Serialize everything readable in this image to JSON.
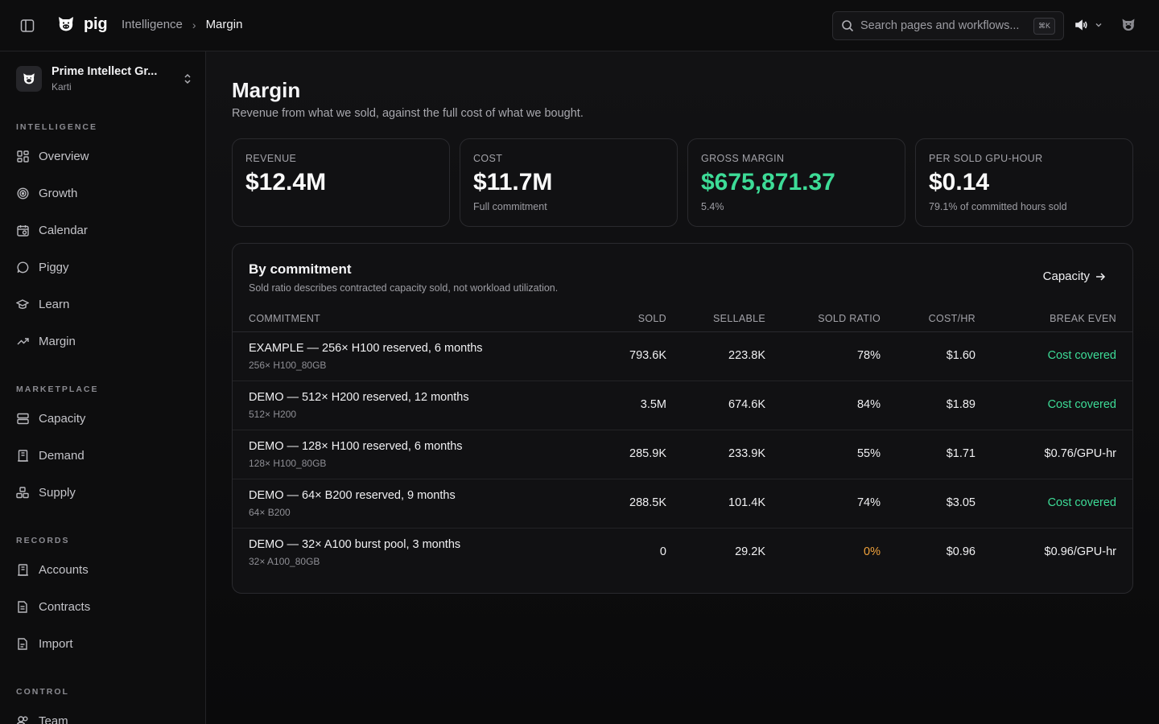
{
  "topbar": {
    "brand": "pig",
    "breadcrumb_parent": "Intelligence",
    "breadcrumb_current": "Margin",
    "search_placeholder": "Search pages and workflows...",
    "search_shortcut": "⌘K"
  },
  "sidebar": {
    "org_name": "Prime Intellect Gr...",
    "org_user": "Karti",
    "sections": {
      "intelligence": "INTELLIGENCE",
      "marketplace": "MARKETPLACE",
      "records": "RECORDS",
      "control": "CONTROL"
    },
    "items": {
      "overview": "Overview",
      "growth": "Growth",
      "calendar": "Calendar",
      "piggy": "Piggy",
      "learn": "Learn",
      "margin": "Margin",
      "capacity": "Capacity",
      "demand": "Demand",
      "supply": "Supply",
      "accounts": "Accounts",
      "contracts": "Contracts",
      "import": "Import",
      "team": "Team"
    }
  },
  "page": {
    "title": "Margin",
    "subtitle": "Revenue from what we sold, against the full cost of what we bought."
  },
  "cards": [
    {
      "label": "REVENUE",
      "value": "$12.4M",
      "note": ""
    },
    {
      "label": "COST",
      "value": "$11.7M",
      "note": "Full commitment"
    },
    {
      "label": "GROSS MARGIN",
      "value": "$675,871.37",
      "note": "5.4%"
    },
    {
      "label": "PER SOLD GPU-HOUR",
      "value": "$0.14",
      "note": "79.1% of committed hours sold"
    }
  ],
  "table": {
    "title": "By commitment",
    "subtitle": "Sold ratio describes contracted capacity sold, not workload utilization.",
    "link": "Capacity",
    "headers": {
      "commitment": "COMMITMENT",
      "sold": "SOLD",
      "sellable": "SELLABLE",
      "ratio": "SOLD RATIO",
      "cost": "COST/HR",
      "break_even": "BREAK EVEN"
    },
    "rows": [
      {
        "name": "EXAMPLE — 256× H100 reserved, 6 months",
        "sub": "256× H100_80GB",
        "sold": "793.6K",
        "sellable": "223.8K",
        "ratio": "78%",
        "cost": "$1.60",
        "break_even": "Cost covered"
      },
      {
        "name": "DEMO — 512× H200 reserved, 12 months",
        "sub": "512× H200",
        "sold": "3.5M",
        "sellable": "674.6K",
        "ratio": "84%",
        "cost": "$1.89",
        "break_even": "Cost covered"
      },
      {
        "name": "DEMO — 128× H100 reserved, 6 months",
        "sub": "128× H100_80GB",
        "sold": "285.9K",
        "sellable": "233.9K",
        "ratio": "55%",
        "cost": "$1.71",
        "break_even": "$0.76/GPU-hr"
      },
      {
        "name": "DEMO — 64× B200 reserved, 9 months",
        "sub": "64× B200",
        "sold": "288.5K",
        "sellable": "101.4K",
        "ratio": "74%",
        "cost": "$3.05",
        "break_even": "Cost covered"
      },
      {
        "name": "DEMO — 32× A100 burst pool, 3 months",
        "sub": "32× A100_80GB",
        "sold": "0",
        "sellable": "29.2K",
        "ratio": "0%",
        "cost": "$0.96",
        "break_even": "$0.96/GPU-hr"
      }
    ]
  },
  "colors": {
    "positive": "#3ddc97",
    "warning": "#f0a23b",
    "background": "#0b0b0c"
  }
}
